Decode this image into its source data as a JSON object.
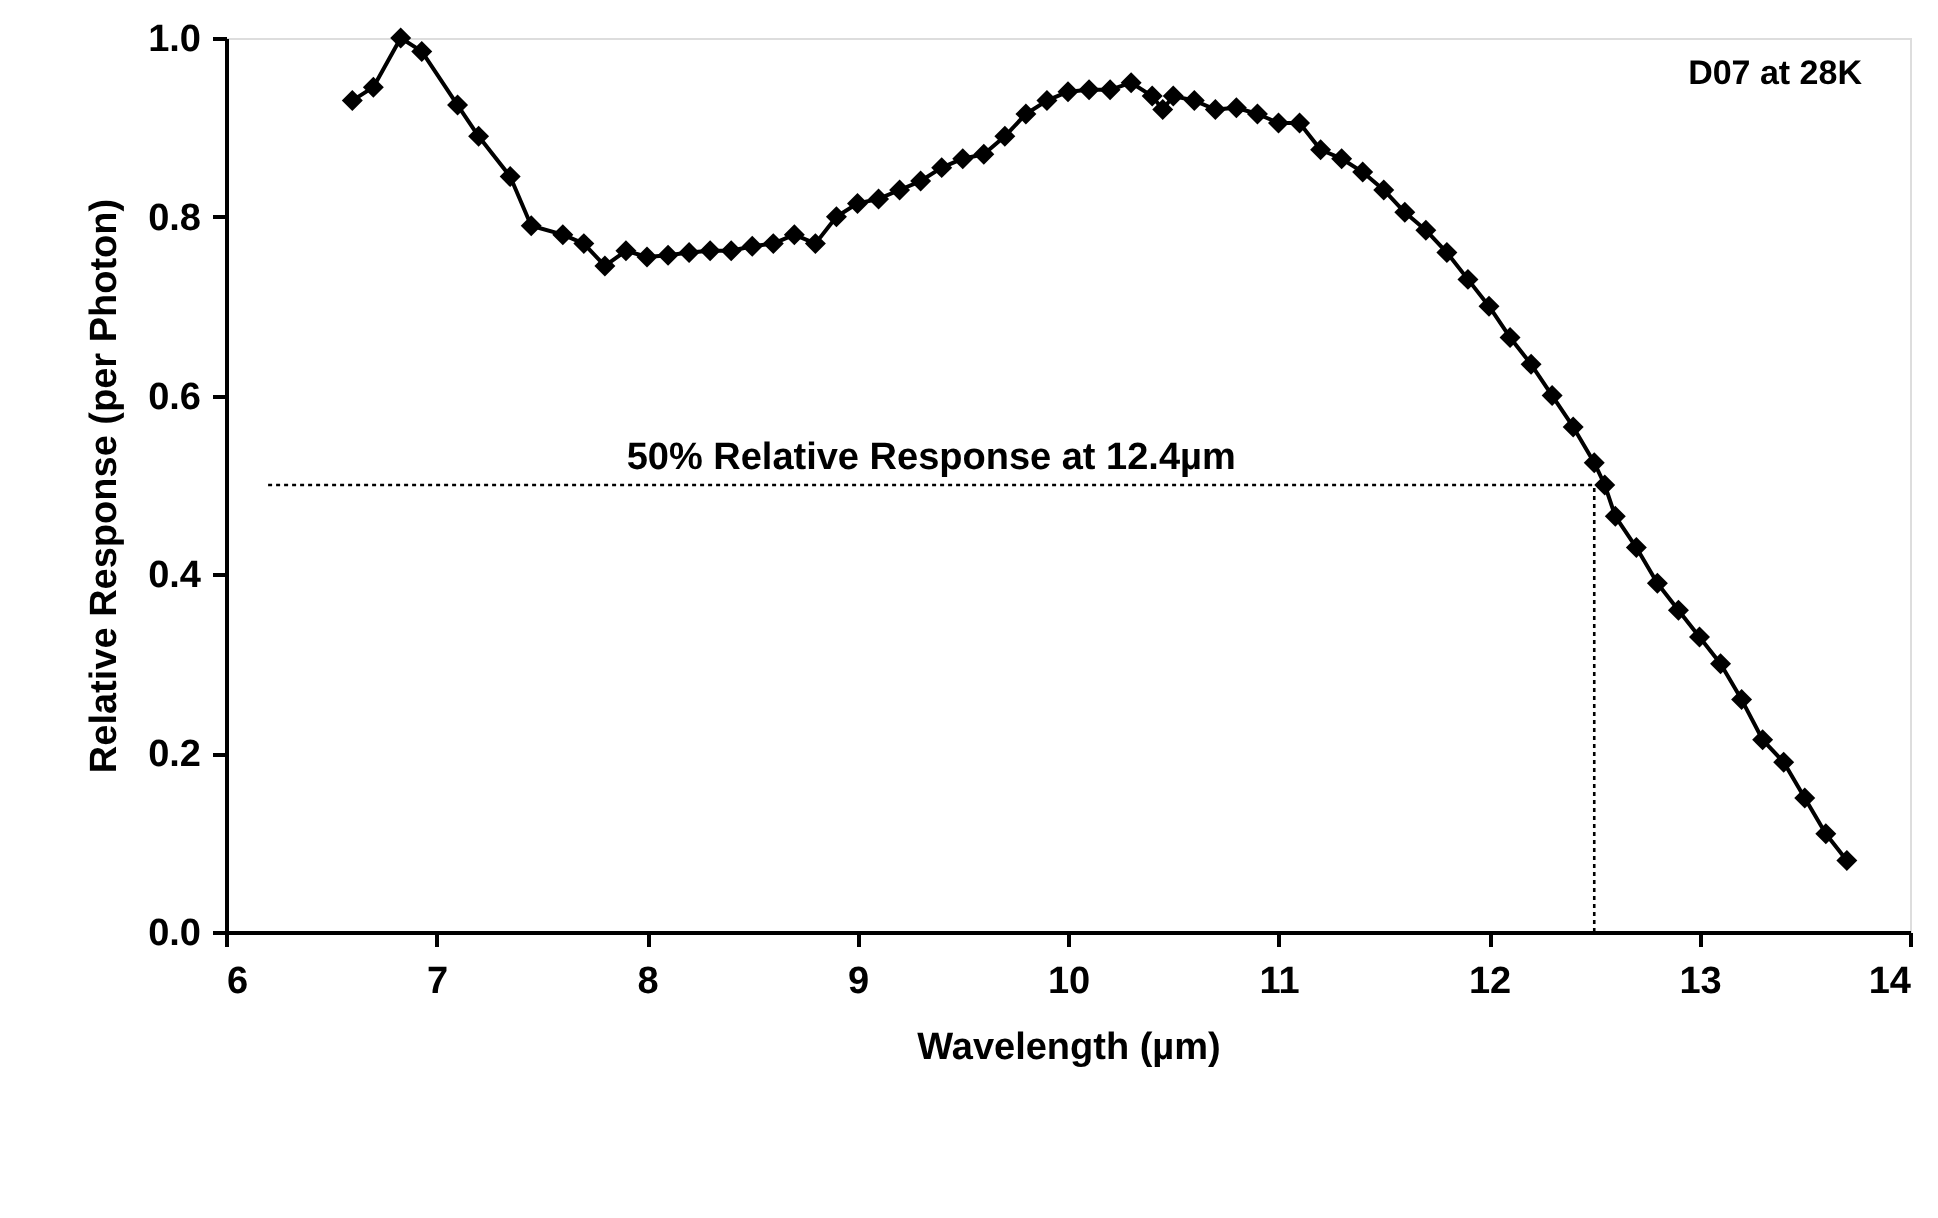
{
  "chart_data": {
    "type": "line",
    "xlabel": "Wavelength (µm)",
    "ylabel": "Relative Response (per Photon)",
    "annotations": [
      "D07 at 28K"
    ],
    "x": [
      6.6,
      6.7,
      6.83,
      6.93,
      7.1,
      7.2,
      7.35,
      7.45,
      7.6,
      7.7,
      7.8,
      7.9,
      8.0,
      8.1,
      8.2,
      8.3,
      8.4,
      8.5,
      8.6,
      8.7,
      8.8,
      8.9,
      9.0,
      9.1,
      9.2,
      9.3,
      9.4,
      9.5,
      9.6,
      9.7,
      9.8,
      9.9,
      10.0,
      10.1,
      10.2,
      10.3,
      10.4,
      10.45,
      10.5,
      10.6,
      10.7,
      10.8,
      10.9,
      11.0,
      11.1,
      11.2,
      11.3,
      11.4,
      11.5,
      11.6,
      11.7,
      11.8,
      11.9,
      12.0,
      12.1,
      12.2,
      12.3,
      12.4,
      12.5,
      12.55,
      12.6,
      12.7,
      12.8,
      12.9,
      13.0,
      13.1,
      13.2,
      13.3,
      13.4,
      13.5,
      13.6,
      13.7
    ],
    "series": [
      {
        "color": "#000000",
        "values": [
          0.93,
          0.945,
          1.0,
          0.985,
          0.925,
          0.89,
          0.845,
          0.79,
          0.78,
          0.77,
          0.745,
          0.762,
          0.755,
          0.757,
          0.76,
          0.762,
          0.762,
          0.767,
          0.77,
          0.78,
          0.77,
          0.8,
          0.815,
          0.82,
          0.83,
          0.84,
          0.855,
          0.865,
          0.87,
          0.89,
          0.915,
          0.93,
          0.94,
          0.942,
          0.942,
          0.95,
          0.935,
          0.92,
          0.935,
          0.93,
          0.92,
          0.922,
          0.915,
          0.905,
          0.905,
          0.875,
          0.865,
          0.85,
          0.83,
          0.805,
          0.785,
          0.76,
          0.73,
          0.7,
          0.665,
          0.635,
          0.6,
          0.565,
          0.525,
          0.5,
          0.465,
          0.43,
          0.39,
          0.36,
          0.33,
          0.3,
          0.26,
          0.215,
          0.19,
          0.15,
          0.11,
          0.08
        ]
      }
    ],
    "xlim": [
      6,
      14
    ],
    "xticks": [
      6,
      7,
      8,
      9,
      10,
      11,
      12,
      13,
      14
    ],
    "ylim": [
      0,
      1
    ],
    "yticks": [
      {
        "value": 0,
        "label": "0.0"
      },
      0.2,
      0.4,
      0.6,
      0.8,
      {
        "value": 1,
        "label": "1.0"
      }
    ],
    "ref_lines": [
      {
        "axis": "y",
        "value": 0.5,
        "label": "50% Relative Response at 12.4µm",
        "color": "#000000",
        "line_style": "dotted"
      },
      {
        "axis": "x",
        "value": 12.5,
        "color": "#000000",
        "line_style": "dotted"
      }
    ],
    "marker": "diamond",
    "line_style": "solid",
    "grid": false
  }
}
